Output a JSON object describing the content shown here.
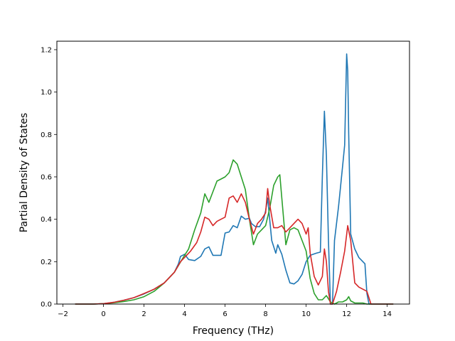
{
  "chart_data": {
    "type": "line",
    "xlabel": "Frequency (THz)",
    "ylabel": "Partial Density of States",
    "xlim": [
      -2.3,
      15.1
    ],
    "ylim": [
      0.0,
      1.24
    ],
    "xticks": [
      "−2",
      "0",
      "2",
      "4",
      "6",
      "8",
      "10",
      "12",
      "14"
    ],
    "xtick_values": [
      -2,
      0,
      2,
      4,
      6,
      8,
      10,
      12,
      14
    ],
    "yticks": [
      "0.0",
      "0.2",
      "0.4",
      "0.6",
      "0.8",
      "1.0",
      "1.2"
    ],
    "ytick_values": [
      0.0,
      0.2,
      0.4,
      0.6,
      0.8,
      1.0,
      1.2
    ],
    "grid": false,
    "legend": "none",
    "series": [
      {
        "color": "#1f77b4",
        "x": [
          -1.4,
          -0.5,
          0,
          0.5,
          1,
          1.5,
          2,
          2.5,
          3,
          3.5,
          3.7,
          3.8,
          4.0,
          4.2,
          4.5,
          4.8,
          5.0,
          5.2,
          5.4,
          5.8,
          6.0,
          6.2,
          6.4,
          6.6,
          6.8,
          7.0,
          7.2,
          7.3,
          7.5,
          7.7,
          7.9,
          8.0,
          8.1,
          8.3,
          8.5,
          8.6,
          8.8,
          9.0,
          9.2,
          9.4,
          9.6,
          9.8,
          10.0,
          10.2,
          10.5,
          10.7,
          10.8,
          10.9,
          11.0,
          11.1,
          11.2,
          11.3,
          11.4,
          11.6,
          11.8,
          11.9,
          12.0,
          12.05,
          12.1,
          12.2,
          12.4,
          12.6,
          12.8,
          12.9,
          13.0,
          13.1,
          13.5,
          14.3
        ],
        "y": [
          0.0,
          0.0,
          0.002,
          0.008,
          0.018,
          0.03,
          0.048,
          0.07,
          0.1,
          0.15,
          0.19,
          0.225,
          0.235,
          0.21,
          0.205,
          0.225,
          0.26,
          0.27,
          0.23,
          0.23,
          0.335,
          0.34,
          0.37,
          0.36,
          0.415,
          0.4,
          0.405,
          0.38,
          0.365,
          0.365,
          0.4,
          0.44,
          0.5,
          0.3,
          0.24,
          0.28,
          0.235,
          0.16,
          0.1,
          0.095,
          0.11,
          0.14,
          0.2,
          0.23,
          0.24,
          0.245,
          0.6,
          0.91,
          0.7,
          0.3,
          0.0,
          0.0,
          0.3,
          0.46,
          0.65,
          0.75,
          1.18,
          1.1,
          0.8,
          0.33,
          0.26,
          0.22,
          0.2,
          0.19,
          0.05,
          0.0,
          0.0,
          0.0
        ]
      },
      {
        "color": "#2ca02c",
        "x": [
          -1.4,
          -0.5,
          0,
          0.5,
          1,
          1.5,
          2,
          2.5,
          3,
          3.5,
          4.0,
          4.2,
          4.5,
          4.8,
          5.0,
          5.2,
          5.4,
          5.6,
          5.8,
          6.0,
          6.2,
          6.4,
          6.6,
          6.8,
          7.0,
          7.2,
          7.4,
          7.6,
          7.8,
          8.0,
          8.2,
          8.4,
          8.6,
          8.7,
          8.8,
          9.0,
          9.2,
          9.4,
          9.6,
          9.8,
          10.0,
          10.2,
          10.4,
          10.6,
          10.8,
          11.0,
          11.2,
          11.4,
          11.6,
          11.8,
          12.0,
          12.1,
          12.2,
          12.4,
          12.8,
          13.0,
          13.3,
          14.3
        ],
        "y": [
          0.0,
          0.0,
          0.002,
          0.006,
          0.012,
          0.02,
          0.035,
          0.06,
          0.1,
          0.15,
          0.23,
          0.26,
          0.35,
          0.43,
          0.52,
          0.48,
          0.53,
          0.58,
          0.59,
          0.6,
          0.62,
          0.68,
          0.66,
          0.6,
          0.54,
          0.4,
          0.28,
          0.33,
          0.35,
          0.37,
          0.45,
          0.56,
          0.6,
          0.61,
          0.5,
          0.28,
          0.35,
          0.36,
          0.35,
          0.3,
          0.25,
          0.12,
          0.05,
          0.02,
          0.02,
          0.04,
          0.01,
          0.0,
          0.01,
          0.01,
          0.02,
          0.035,
          0.015,
          0.005,
          0.005,
          0.0,
          0.0,
          0.0
        ]
      },
      {
        "color": "#d62728",
        "x": [
          -1.4,
          -0.5,
          0,
          0.5,
          1,
          1.5,
          2,
          2.5,
          3,
          3.5,
          3.8,
          4.0,
          4.3,
          4.6,
          4.8,
          5.0,
          5.2,
          5.4,
          5.6,
          5.8,
          6.0,
          6.2,
          6.4,
          6.6,
          6.8,
          7.0,
          7.2,
          7.4,
          7.6,
          7.8,
          8.0,
          8.1,
          8.2,
          8.4,
          8.6,
          8.8,
          9.0,
          9.2,
          9.4,
          9.6,
          9.8,
          10.0,
          10.1,
          10.2,
          10.4,
          10.6,
          10.8,
          10.9,
          11.0,
          11.1,
          11.2,
          11.3,
          11.5,
          11.7,
          11.9,
          12.05,
          12.2,
          12.4,
          12.6,
          12.8,
          13.0,
          13.2,
          14.3
        ],
        "y": [
          0.0,
          0.0,
          0.002,
          0.008,
          0.018,
          0.03,
          0.05,
          0.07,
          0.1,
          0.15,
          0.2,
          0.22,
          0.25,
          0.29,
          0.34,
          0.41,
          0.4,
          0.37,
          0.39,
          0.4,
          0.41,
          0.5,
          0.51,
          0.48,
          0.52,
          0.48,
          0.4,
          0.33,
          0.38,
          0.4,
          0.43,
          0.545,
          0.47,
          0.36,
          0.36,
          0.37,
          0.34,
          0.36,
          0.38,
          0.4,
          0.38,
          0.33,
          0.36,
          0.24,
          0.13,
          0.09,
          0.13,
          0.26,
          0.2,
          0.06,
          0.0,
          0.0,
          0.06,
          0.15,
          0.25,
          0.37,
          0.3,
          0.1,
          0.08,
          0.07,
          0.06,
          0.0,
          0.0
        ]
      }
    ]
  }
}
